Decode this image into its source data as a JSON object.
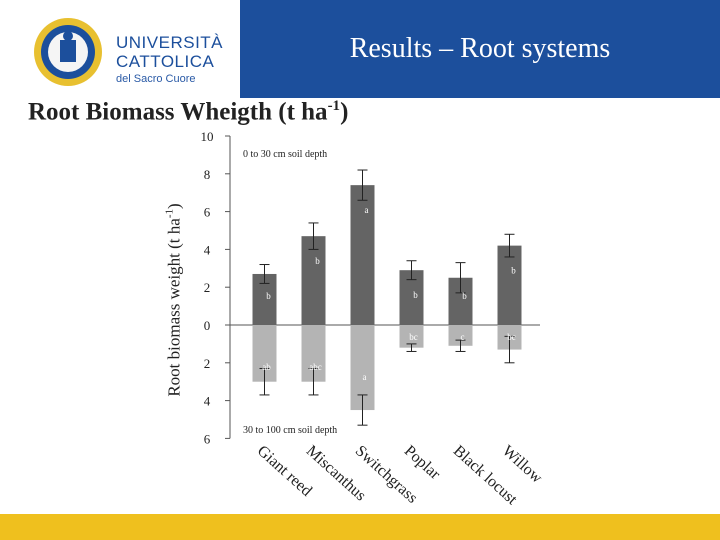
{
  "header": {
    "title": "Results – Root systems"
  },
  "logo": {
    "line1": "UNIVERSITÀ",
    "line2": "CATTOLICA",
    "line3": "del Sacro Cuore"
  },
  "slide": {
    "title_main": "Root Biomass Wheigth (t ha",
    "title_sup": "-1",
    "title_end": ")"
  },
  "chart_data": {
    "type": "bar",
    "xlabel": "",
    "ylabel": "Root biomass weight (t ha-1)",
    "ylabel_main": "Root biomass weight (t ha",
    "ylabel_sup": "-1",
    "ylabel_end": ")",
    "ylim": [
      -6,
      10
    ],
    "yticks": [
      {
        "v": 10,
        "label": "10"
      },
      {
        "v": 8,
        "label": "8"
      },
      {
        "v": 6,
        "label": "6"
      },
      {
        "v": 4,
        "label": "4"
      },
      {
        "v": 2,
        "label": "2"
      },
      {
        "v": 0,
        "label": "0"
      },
      {
        "v": -2,
        "label": "2"
      },
      {
        "v": -4,
        "label": "4"
      },
      {
        "v": -6,
        "label": "6"
      }
    ],
    "categories": [
      "Giant reed",
      "Miscanthus",
      "Switchgrass",
      "Poplar",
      "Black locust",
      "Willow"
    ],
    "annotations": {
      "top": "0 to 30 cm soil depth",
      "bottom": "30 to 100 cm soil depth"
    },
    "series": [
      {
        "name": "0 to 30 cm soil depth",
        "color": "#646464",
        "values": [
          2.7,
          4.7,
          7.4,
          2.9,
          2.5,
          4.2
        ],
        "errors": [
          0.5,
          0.7,
          0.8,
          0.5,
          0.8,
          0.6
        ],
        "letters": [
          "b",
          "b",
          "a",
          "b",
          "b",
          "b"
        ]
      },
      {
        "name": "30 to 100 cm soil depth",
        "color": "#b4b4b4",
        "values": [
          -3.0,
          -3.0,
          -4.5,
          -1.2,
          -1.1,
          -1.3
        ],
        "errors": [
          0.7,
          0.7,
          0.8,
          0.2,
          0.3,
          0.7
        ],
        "letters": [
          "ab",
          "abc",
          "a",
          "bc",
          "c",
          "bc"
        ]
      }
    ]
  }
}
